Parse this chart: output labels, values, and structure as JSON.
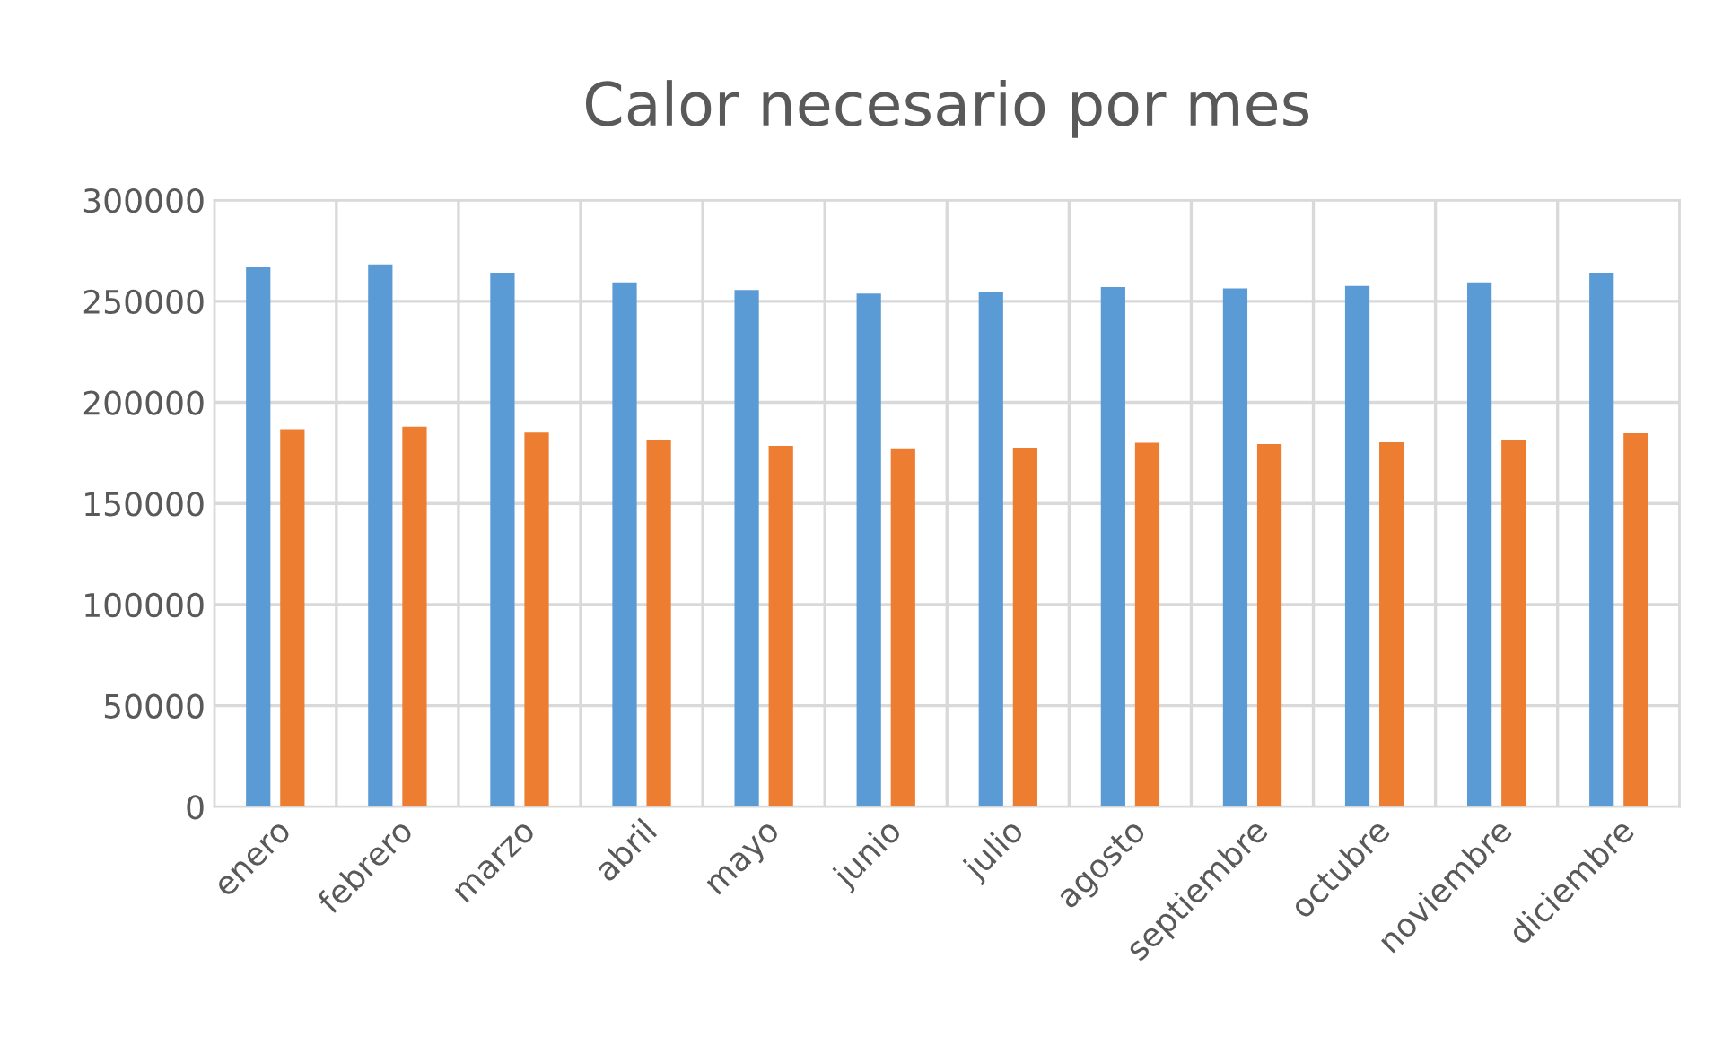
{
  "chart_data": {
    "type": "bar",
    "title": "Calor necesario por mes",
    "categories": [
      "enero",
      "febrero",
      "marzo",
      "abril",
      "mayo",
      "junio",
      "julio",
      "agosto",
      "septiembre",
      "octubre",
      "noviembre",
      "diciembre"
    ],
    "series": [
      {
        "color": "#5b9bd5",
        "values": [
          266800,
          268200,
          264100,
          259400,
          255600,
          253800,
          254400,
          257000,
          256400,
          257600,
          259400,
          264100
        ]
      },
      {
        "color": "#ed7d31",
        "values": [
          186700,
          187900,
          185000,
          181500,
          178500,
          177300,
          177600,
          180000,
          179400,
          180300,
          181500,
          184700
        ]
      }
    ],
    "ylim": [
      0,
      300000
    ],
    "yticks": [
      0,
      50000,
      100000,
      150000,
      200000,
      250000,
      300000
    ],
    "grid": true,
    "legend": false
  }
}
